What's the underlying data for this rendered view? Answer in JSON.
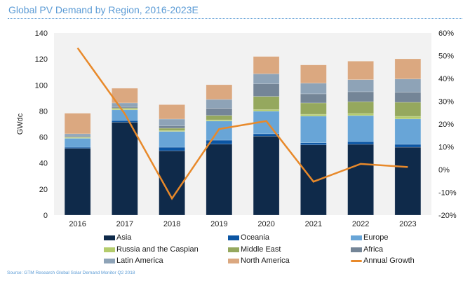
{
  "chart_data": {
    "type": "bar",
    "stacked": true,
    "title": "Global PV Demand by Region, 2016-2023E",
    "ylabel": "GWdc",
    "ylim": [
      0,
      140
    ],
    "yticks": [
      "0",
      "20",
      "40",
      "60",
      "80",
      "100",
      "120",
      "140"
    ],
    "y2lim": [
      -20,
      60
    ],
    "y2ticks": [
      "-20%",
      "-10%",
      "0%",
      "10%",
      "20%",
      "30%",
      "40%",
      "50%",
      "60%"
    ],
    "categories": [
      "2016",
      "2017",
      "2018",
      "2019",
      "2020",
      "2021",
      "2022",
      "2023"
    ],
    "series": [
      {
        "name": "Asia",
        "color": "#0f2a4a",
        "values": [
          51.3,
          71.4,
          49.5,
          54.6,
          60.7,
          54.0,
          54.4,
          52.2
        ]
      },
      {
        "name": "Oceania",
        "color": "#0b55a3",
        "values": [
          0.9,
          1.3,
          2.7,
          3.0,
          1.8,
          1.6,
          2.1,
          2.2
        ]
      },
      {
        "name": "Europe",
        "color": "#68a5d7",
        "values": [
          6.8,
          8.2,
          12.1,
          14.7,
          17.4,
          20.5,
          20.0,
          19.5
        ]
      },
      {
        "name": "Russia and the Caspian",
        "color": "#b4cc6c",
        "values": [
          0.6,
          0.8,
          0.7,
          0.9,
          1.2,
          1.4,
          1.6,
          2.0
        ]
      },
      {
        "name": "Middle East",
        "color": "#95a85e",
        "values": [
          0.5,
          0.7,
          1.8,
          3.4,
          10.1,
          8.7,
          9.1,
          10.8
        ]
      },
      {
        "name": "Africa",
        "color": "#748597",
        "values": [
          0.7,
          0.8,
          1.8,
          5.4,
          9.7,
          7.0,
          7.6,
          7.7
        ]
      },
      {
        "name": "Latin America",
        "color": "#8ea3b7",
        "values": [
          1.7,
          3.0,
          5.2,
          6.9,
          7.7,
          8.2,
          9.3,
          10.2
        ]
      },
      {
        "name": "North America",
        "color": "#dba880",
        "values": [
          15.8,
          11.3,
          11.1,
          11.3,
          13.3,
          14.0,
          14.2,
          15.5
        ]
      }
    ],
    "line_series": {
      "name": "Annual Growth",
      "color": "#e8892a",
      "axis": "right",
      "values": [
        53.4,
        24.5,
        -12.7,
        17.8,
        21.3,
        -5.3,
        2.5,
        1.1
      ]
    },
    "grid": false,
    "legend_position": "bottom",
    "source": "Source: GTM Research Global Solar Demand Monitor Q2 2018"
  }
}
